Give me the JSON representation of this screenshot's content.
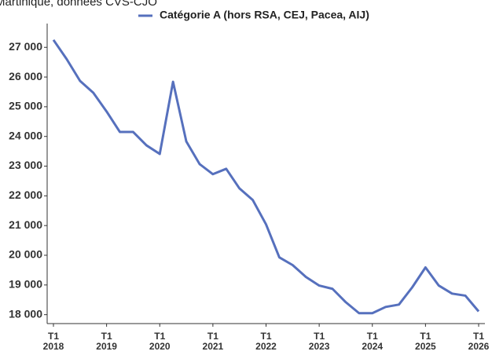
{
  "chart_data": {
    "type": "line",
    "title": "Martinique, données CVS-CJO",
    "categories": [
      "T1\n2018",
      null,
      null,
      null,
      "T1\n2019",
      null,
      null,
      null,
      "T1\n2020",
      null,
      null,
      null,
      "T1\n2021",
      null,
      null,
      null,
      "T1\n2022",
      null,
      null,
      null,
      "T1\n2023",
      null,
      null,
      null,
      "T1\n2024",
      null,
      null,
      null,
      "T1\n2025",
      null,
      null,
      null,
      "T1\n2026"
    ],
    "series": [
      {
        "name": "Catégorie A (hors RSA, CEJ, Pacea, AIJ)",
        "color": "#5670bd",
        "values": [
          27250,
          26600,
          25870,
          25470,
          24840,
          24150,
          24150,
          23700,
          23410,
          25840,
          23830,
          23070,
          22730,
          22910,
          22250,
          21860,
          21040,
          19930,
          19670,
          19270,
          18980,
          18870,
          18420,
          18050,
          18050,
          18260,
          18340,
          18920,
          19590,
          18980,
          18710,
          18640,
          18110
        ]
      }
    ],
    "ylim": [
      17700,
      27800
    ],
    "yticks": [
      {
        "value": 18000,
        "label": "18 000"
      },
      {
        "value": 19000,
        "label": "19 000"
      },
      {
        "value": 20000,
        "label": "20 000"
      },
      {
        "value": 21000,
        "label": "21 000"
      },
      {
        "value": 22000,
        "label": "22 000"
      },
      {
        "value": 23000,
        "label": "23 000"
      },
      {
        "value": 24000,
        "label": "24 000"
      },
      {
        "value": 25000,
        "label": "25 000"
      },
      {
        "value": 26000,
        "label": "26 000"
      },
      {
        "value": 27000,
        "label": "27 000"
      }
    ],
    "legend": "top"
  }
}
